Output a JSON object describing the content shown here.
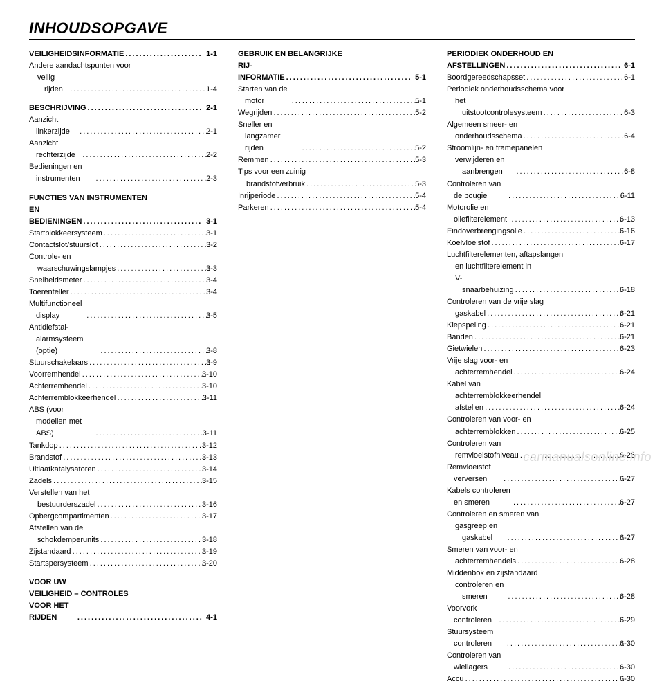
{
  "title": "INHOUDSOPGAVE",
  "watermark": "carmanualsonline.info",
  "leader": ".....................................................",
  "style": {
    "font_family": "Arial, Helvetica, sans-serif",
    "title_fontsize": 22,
    "title_weight": 900,
    "title_style": "italic",
    "body_fontsize": 11,
    "line_height": 1.55,
    "rule_thickness": 2.5,
    "columns": 3,
    "column_gap": 30,
    "text_color": "#000000",
    "background_color": "#ffffff",
    "watermark_color": "#dcdcdc",
    "watermark_fontsize": 18
  },
  "chapters": [
    {
      "heading": "VEILIGHEIDSINFORMATIE",
      "heading_page": "1-1",
      "entries": [
        {
          "label": "Andere aandachtspunten voor",
          "cont": "veilig rijden",
          "page": "1-4"
        }
      ]
    },
    {
      "heading": "BESCHRIJVING",
      "heading_page": "2-1",
      "entries": [
        {
          "label": "Aanzicht linkerzijde",
          "page": "2-1"
        },
        {
          "label": "Aanzicht rechterzijde",
          "page": "2-2"
        },
        {
          "label": "Bedieningen en instrumenten",
          "page": "2-3"
        }
      ]
    },
    {
      "heading": "FUNCTIES VAN INSTRUMENTEN",
      "heading2": "EN BEDIENINGEN",
      "heading_page": "3-1",
      "entries": [
        {
          "label": "Startblokkeersysteem",
          "page": "3-1"
        },
        {
          "label": "Contactslot/stuurslot",
          "page": "3-2"
        },
        {
          "label": "Controle- en",
          "cont": "waarschuwingslampjes",
          "page": "3-3"
        },
        {
          "label": "Snelheidsmeter",
          "page": "3-4"
        },
        {
          "label": "Toerenteller",
          "page": "3-4"
        },
        {
          "label": "Multifunctioneel display",
          "page": "3-5"
        },
        {
          "label": "Antidiefstal-alarmsysteem (optie)",
          "page": "3-8"
        },
        {
          "label": "Stuurschakelaars",
          "page": "3-9"
        },
        {
          "label": "Voorremhendel",
          "page": "3-10"
        },
        {
          "label": "Achterremhendel",
          "page": "3-10"
        },
        {
          "label": "Achterremblokkeerhendel",
          "page": "3-11"
        },
        {
          "label": "ABS (voor modellen met ABS)",
          "page": "3-11"
        },
        {
          "label": "Tankdop",
          "page": "3-12"
        },
        {
          "label": "Brandstof",
          "page": "3-13"
        },
        {
          "label": "Uitlaatkatalysatoren",
          "page": "3-14"
        },
        {
          "label": "Zadels",
          "page": "3-15"
        },
        {
          "label": "Verstellen van het",
          "cont": "bestuurderszadel",
          "page": "3-16"
        },
        {
          "label": "Opbergcompartimenten",
          "page": "3-17"
        },
        {
          "label": "Afstellen van de",
          "cont": "schokdemperunits",
          "page": "3-18"
        },
        {
          "label": "Zijstandaard",
          "page": "3-19"
        },
        {
          "label": "Startspersysteem",
          "page": "3-20"
        }
      ]
    },
    {
      "heading": "VOOR UW",
      "heading2": "VEILIGHEID – CONTROLES",
      "heading3": "VOOR HET RIJDEN",
      "heading_page": "4-1",
      "entries": []
    },
    {
      "heading": "GEBRUIK EN BELANGRIJKE",
      "heading2": "RIJ-INFORMATIE",
      "heading_page": "5-1",
      "entries": [
        {
          "label": "Starten van de motor",
          "page": "5-1"
        },
        {
          "label": "Wegrijden",
          "page": "5-2"
        },
        {
          "label": "Sneller en langzamer rijden",
          "page": "5-2"
        },
        {
          "label": "Remmen",
          "page": "5-3"
        },
        {
          "label": "Tips voor een zuinig",
          "cont": "brandstofverbruik",
          "page": "5-3"
        },
        {
          "label": "Inrijperiode",
          "page": "5-4"
        },
        {
          "label": "Parkeren",
          "page": "5-4"
        }
      ]
    },
    {
      "heading": "PERIODIEK ONDERHOUD EN",
      "heading2": "AFSTELLINGEN",
      "heading_page": "6-1",
      "entries": [
        {
          "label": "Boordgereedschapsset",
          "page": "6-1"
        },
        {
          "label": "Periodiek onderhoudsschema voor",
          "cont": "het uitstootcontrolesysteem",
          "page": "6-3"
        },
        {
          "label": "Algemeen smeer- en",
          "cont": "onderhoudsschema",
          "page": "6-4"
        },
        {
          "label": "Stroomlijn- en framepanelen",
          "cont": "verwijderen en aanbrengen",
          "page": "6-8"
        },
        {
          "label": "Controleren van de bougie",
          "page": "6-11"
        },
        {
          "label": "Motorolie en oliefilterelement",
          "page": "6-13"
        },
        {
          "label": "Eindoverbrengingsolie",
          "page": "6-16"
        },
        {
          "label": "Koelvloeistof",
          "page": "6-17"
        },
        {
          "label": "Luchtfilterelementen, aftapslangen",
          "cont": "en luchtfilterelement in",
          "cont2": "V-snaarbehuizing",
          "page": "6-18"
        },
        {
          "label": "Controleren van de vrije slag",
          "cont": "gaskabel",
          "page": "6-21"
        },
        {
          "label": "Klepspeling",
          "page": "6-21"
        },
        {
          "label": "Banden",
          "page": "6-21"
        },
        {
          "label": "Gietwielen",
          "page": "6-23"
        },
        {
          "label": "Vrije slag voor- en",
          "cont": "achterremhendel",
          "page": "6-24"
        },
        {
          "label": "Kabel van",
          "cont": "achterremblokkeerhendel",
          "cont2": "afstellen",
          "page": "6-24"
        },
        {
          "label": "Controleren van voor- en",
          "cont": "achterremblokken",
          "page": "6-25"
        },
        {
          "label": "Controleren van",
          "cont": "remvloeistofniveau",
          "page": "6-26"
        },
        {
          "label": "Remvloeistof verversen",
          "page": "6-27"
        },
        {
          "label": "Kabels controleren en smeren",
          "page": "6-27"
        },
        {
          "label": "Controleren en smeren van",
          "cont": "gasgreep en gaskabel",
          "page": "6-27"
        },
        {
          "label": "Smeren van voor- en",
          "cont": "achterremhendels",
          "page": "6-28"
        },
        {
          "label": "Middenbok en zijstandaard",
          "cont": "controleren en smeren",
          "page": "6-28"
        },
        {
          "label": "Voorvork controleren",
          "page": "6-29"
        },
        {
          "label": "Stuursysteem controleren",
          "page": "6-30"
        },
        {
          "label": "Controleren van wiellagers",
          "page": "6-30"
        },
        {
          "label": "Accu",
          "page": "6-30"
        }
      ]
    }
  ]
}
